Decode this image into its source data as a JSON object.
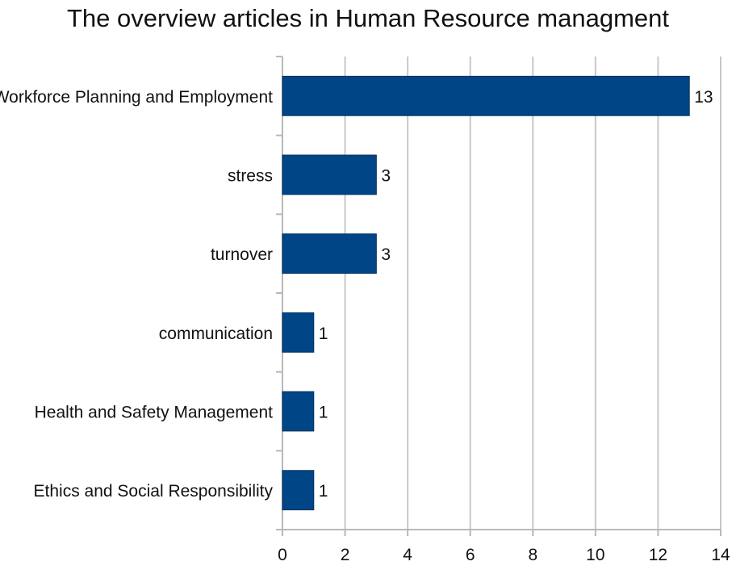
{
  "chart_data": {
    "type": "bar",
    "orientation": "horizontal",
    "title": "The overview articles in Human Resource managment",
    "xlabel": "",
    "ylabel": "",
    "categories": [
      "Workforce Planning and Employment",
      "stress",
      "turnover",
      "communication",
      "Health and Safety Management",
      "Ethics and Social Responsibility"
    ],
    "values": [
      13,
      3,
      3,
      1,
      1,
      1
    ],
    "data_labels": [
      "13",
      "3",
      "3",
      "1",
      "1",
      "1"
    ],
    "xlim": [
      0,
      14
    ],
    "xticks": [
      "0",
      "2",
      "4",
      "6",
      "8",
      "10",
      "12",
      "14"
    ],
    "grid": true,
    "bar_color": "#004586",
    "legend": "none"
  }
}
